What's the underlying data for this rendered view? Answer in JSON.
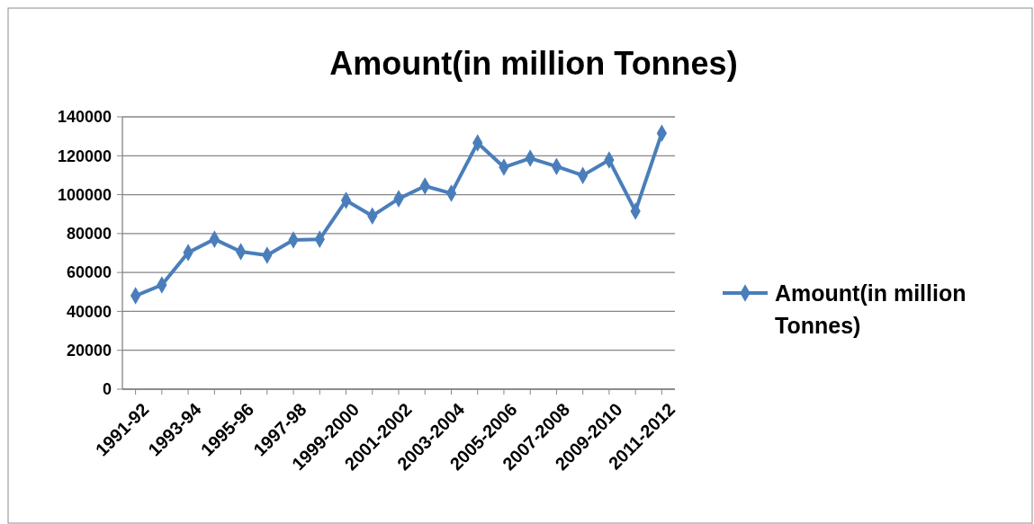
{
  "chart_data": {
    "type": "line",
    "title": "Amount(in million Tonnes)",
    "categories": [
      "1991-92",
      null,
      "1993-94",
      null,
      "1995-96",
      null,
      "1997-98",
      null,
      "1999-2000",
      null,
      "2001-2002",
      null,
      "2003-2004",
      null,
      "2005-2006",
      null,
      "2007-2008",
      null,
      "2009-2010",
      null,
      "2011-2012"
    ],
    "series": [
      {
        "name": "Amount(in million Tonnes)",
        "color": "#4a7ebb",
        "values": [
          48000,
          53600,
          70200,
          77100,
          70700,
          68800,
          76700,
          77100,
          97000,
          89100,
          97900,
          104400,
          100700,
          126600,
          114100,
          118700,
          114500,
          109900,
          117800,
          91500,
          131600
        ]
      }
    ],
    "ylim": [
      0,
      140000
    ],
    "yticks": [
      0,
      20000,
      40000,
      60000,
      80000,
      100000,
      120000,
      140000
    ],
    "grid": "y",
    "legend": "right",
    "marker": "diamond",
    "line_style": "solid"
  }
}
